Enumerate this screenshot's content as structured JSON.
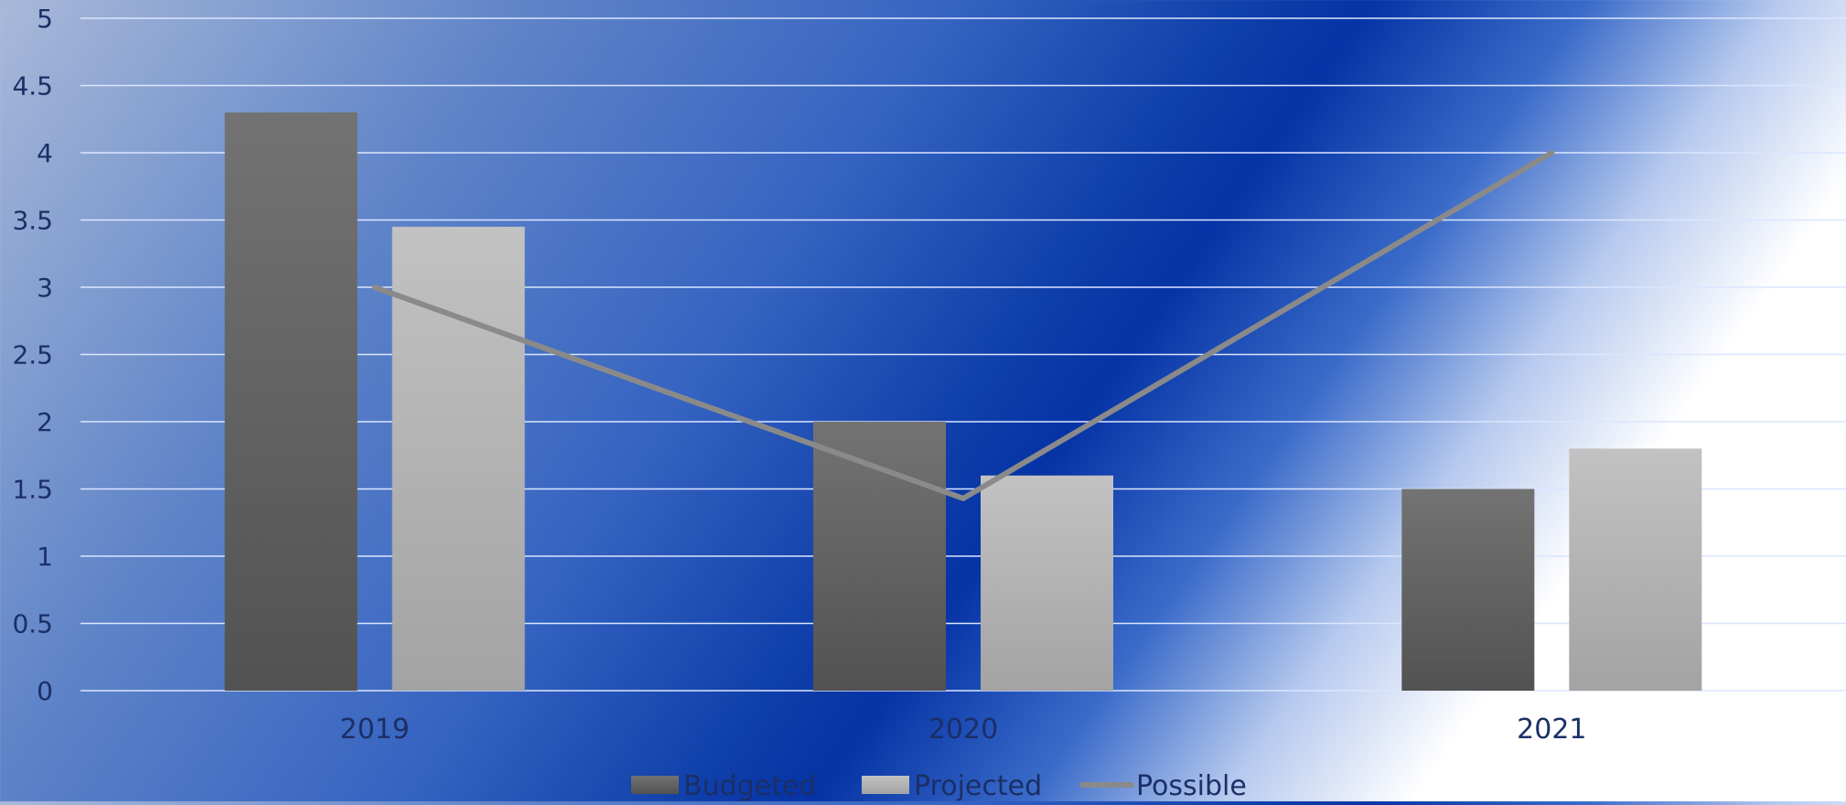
{
  "chart_data": {
    "type": "bar",
    "title": "",
    "xlabel": "",
    "ylabel": "",
    "categories": [
      "2019",
      "2020",
      "2021"
    ],
    "series": [
      {
        "name": "Budgeted",
        "type": "bar",
        "values": [
          4.3,
          2.0,
          1.5
        ],
        "color": "#5e5e5e"
      },
      {
        "name": "Projected",
        "type": "bar",
        "values": [
          3.45,
          1.6,
          1.8
        ],
        "color": "#b4b4b4"
      },
      {
        "name": "Possible",
        "type": "line",
        "values": [
          3.0,
          1.43,
          4.0
        ],
        "color": "#8a8a8a"
      }
    ],
    "ylim": [
      0,
      5
    ],
    "yticks": [
      "0",
      "0.5",
      "1",
      "1.5",
      "2",
      "2.5",
      "3",
      "3.5",
      "4",
      "4.5",
      "5"
    ],
    "grid": true,
    "legend_position": "bottom"
  }
}
